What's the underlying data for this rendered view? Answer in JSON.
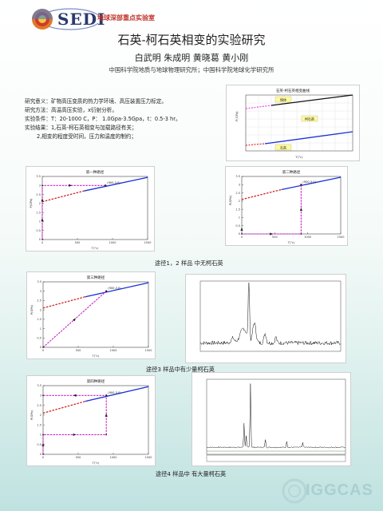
{
  "header": {
    "logo_text": "SEDI",
    "lab_name": "地球深部重点实验室"
  },
  "title": "石英-柯石英相变的实验研究",
  "authors": "白武明 朱成明 黄晓葛 黄小刚",
  "affiliation": "中国科学院地质与地球物理研究所；中国科学院地球化学研究所",
  "info": {
    "significance": "研究意义：矿物高压变质的热力学环境、高压装置压力标定。",
    "method": "研究方法：高温高压实验，x衍射分析。",
    "conditions": "实验条件：T：20-1000 C，P： 1.0Gpa-3.5Gpa，t：0.5-3 hr。",
    "results_1": "实验结果：1,石英-柯石英相变与加载路径有关；",
    "results_2": "2,相变的程度受时间，压力和温度的制约；"
  },
  "phase_diagram": {
    "title": "石英-柯石英相变曲线",
    "label_coesite": "柯石英",
    "label_quartz": "石英",
    "label_melt": "熔体"
  },
  "path_charts": {
    "p1_title": "第一种路径",
    "p2_title": "第二种路径",
    "p3_title": "第三种路径",
    "p4_title": "第四种路径",
    "point_label": "(900,3.0)",
    "xlabel": "T(°c)",
    "ylabel": "P(GPa)"
  },
  "captions": {
    "c1": "途径1，2 样品 中无柯石英",
    "c2": "途径3 样品中有少量柯石英",
    "c3": "途径4 样品中 有大量柯石英"
  },
  "footer": {
    "logo_text": "IGGCAS"
  },
  "colors": {
    "blue_line": "#1a2fd6",
    "red_dash": "#d42020",
    "magenta_path": "#cc22cc",
    "pink_dash": "#ee44ee"
  }
}
